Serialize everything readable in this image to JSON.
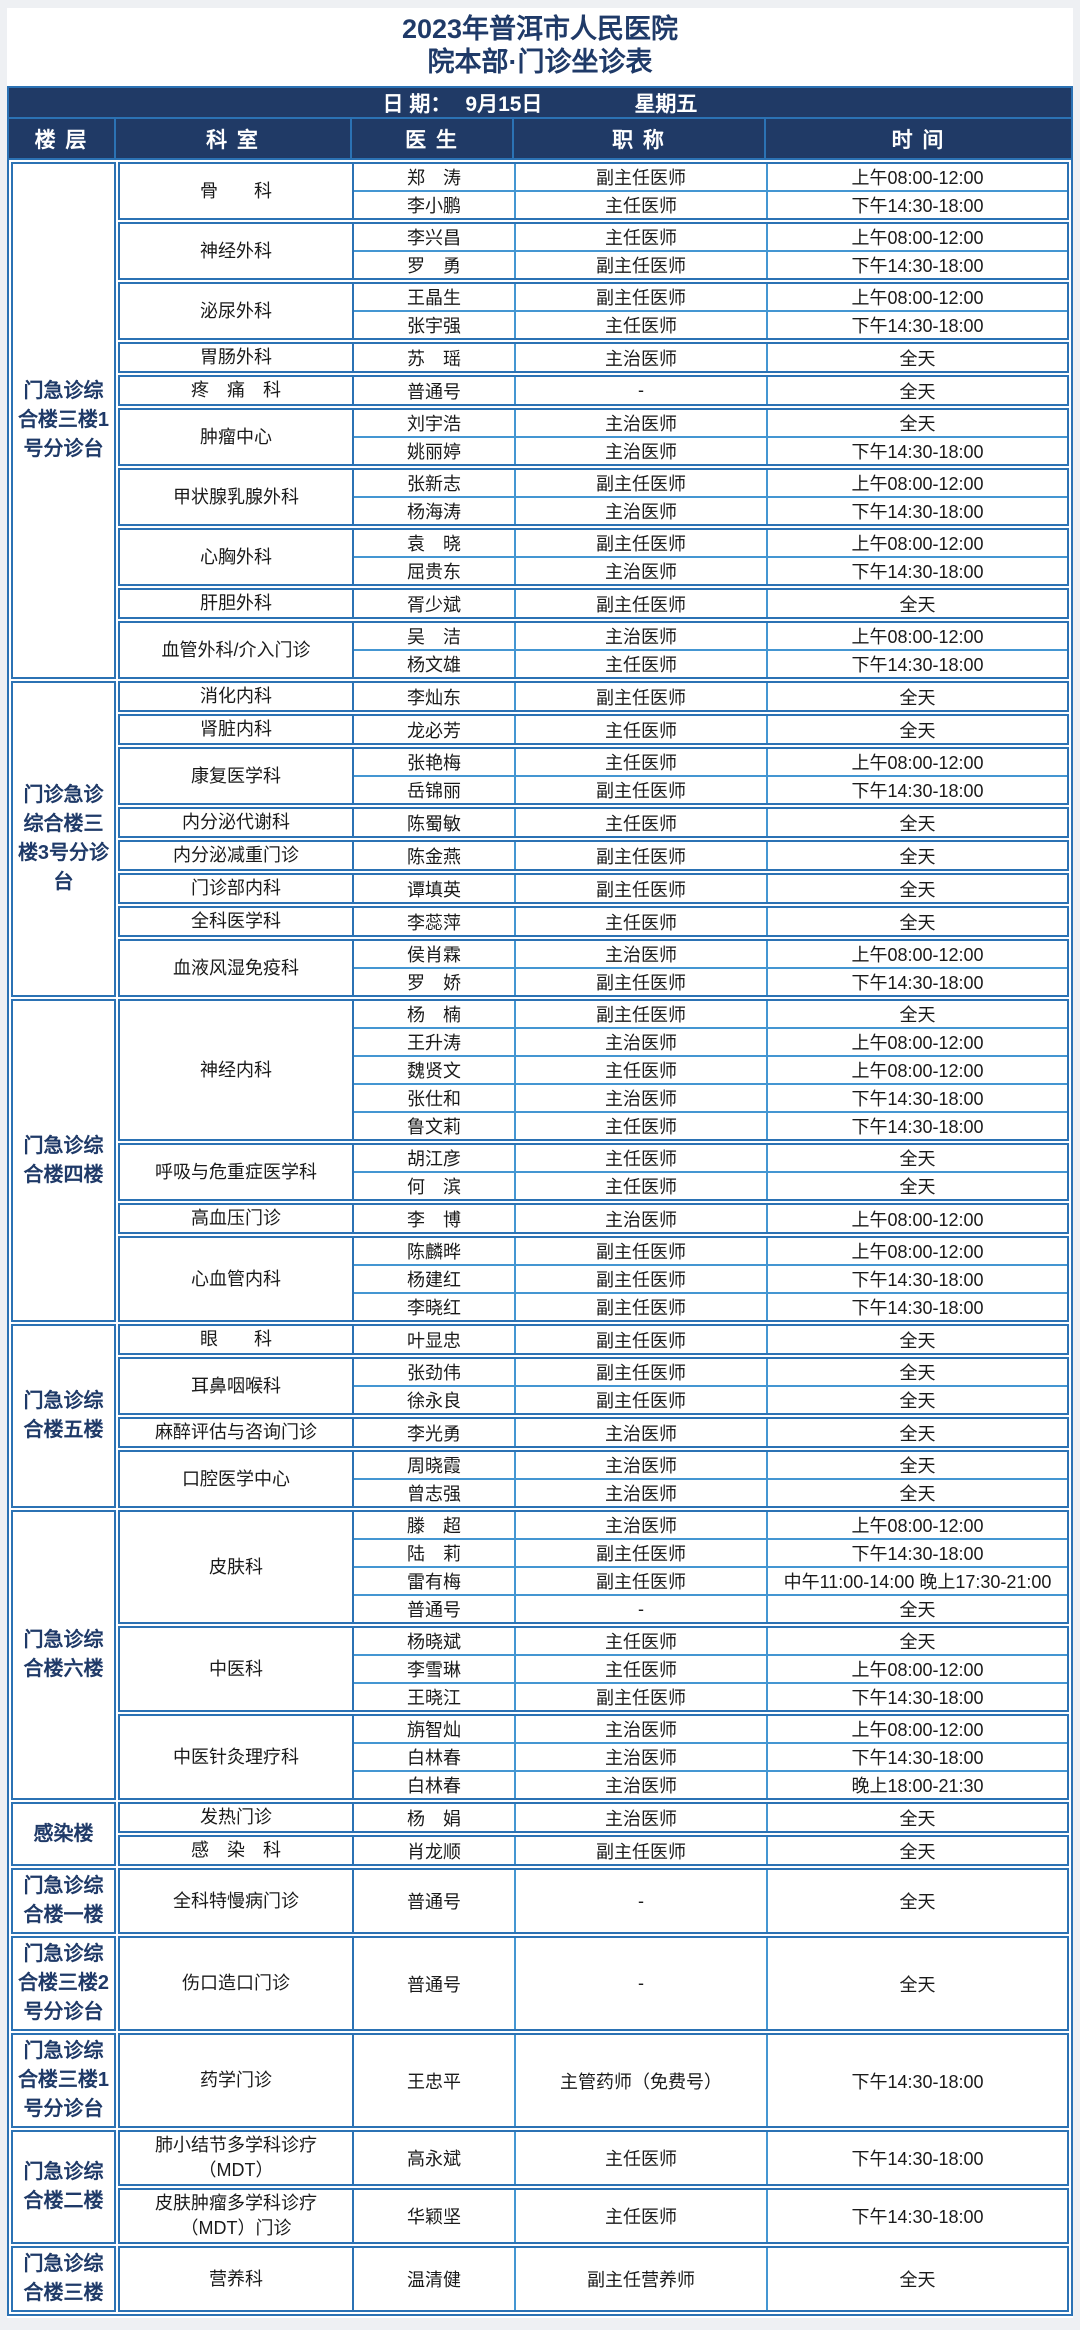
{
  "title": {
    "line1": "2023年普洱市人民医院",
    "line2": "院本部·门诊坐诊表"
  },
  "date_bar": {
    "label": "日 期：",
    "date": "9月15日",
    "weekday": "星期五"
  },
  "columns": {
    "floor": "楼 层",
    "department": "科 室",
    "doctor": "医 生",
    "title": "职 称",
    "time": "时  间"
  },
  "colors": {
    "header_navy": "#203a66",
    "title_navy": "#1f3a68",
    "border_strong": "#2b72b4",
    "border_light": "#4496d2",
    "body_text": "#1a1a1a"
  },
  "groups": [
    {
      "floor": "门急诊综合楼三楼1号分诊台",
      "departments": [
        {
          "name": "骨　　科",
          "doctors": [
            {
              "name": "郑　涛",
              "title": "副主任医师",
              "time": "上午08:00-12:00"
            },
            {
              "name": "李小鹏",
              "title": "主任医师",
              "time": "下午14:30-18:00"
            }
          ]
        },
        {
          "name": "神经外科",
          "doctors": [
            {
              "name": "李兴昌",
              "title": "主任医师",
              "time": "上午08:00-12:00"
            },
            {
              "name": "罗　勇",
              "title": "副主任医师",
              "time": "下午14:30-18:00"
            }
          ]
        },
        {
          "name": "泌尿外科",
          "doctors": [
            {
              "name": "王晶生",
              "title": "副主任医师",
              "time": "上午08:00-12:00"
            },
            {
              "name": "张宇强",
              "title": "主任医师",
              "time": "下午14:30-18:00"
            }
          ]
        },
        {
          "name": "胃肠外科",
          "doctors": [
            {
              "name": "苏　瑶",
              "title": "主治医师",
              "time": "全天"
            }
          ]
        },
        {
          "name": "疼　痛　科",
          "doctors": [
            {
              "name": "普通号",
              "title": "-",
              "time": "全天"
            }
          ]
        },
        {
          "name": "肿瘤中心",
          "doctors": [
            {
              "name": "刘宇浩",
              "title": "主治医师",
              "time": "全天"
            },
            {
              "name": "姚丽婷",
              "title": "主治医师",
              "time": "下午14:30-18:00"
            }
          ]
        },
        {
          "name": "甲状腺乳腺外科",
          "doctors": [
            {
              "name": "张新志",
              "title": "副主任医师",
              "time": "上午08:00-12:00"
            },
            {
              "name": "杨海涛",
              "title": "主治医师",
              "time": "下午14:30-18:00"
            }
          ]
        },
        {
          "name": "心胸外科",
          "doctors": [
            {
              "name": "袁　晓",
              "title": "副主任医师",
              "time": "上午08:00-12:00"
            },
            {
              "name": "屈贵东",
              "title": "主治医师",
              "time": "下午14:30-18:00"
            }
          ]
        },
        {
          "name": "肝胆外科",
          "doctors": [
            {
              "name": "胥少斌",
              "title": "副主任医师",
              "time": "全天"
            }
          ]
        },
        {
          "name": "血管外科/介入门诊",
          "doctors": [
            {
              "name": "吴　洁",
              "title": "主治医师",
              "time": "上午08:00-12:00"
            },
            {
              "name": "杨文雄",
              "title": "主任医师",
              "time": "下午14:30-18:00"
            }
          ]
        }
      ]
    },
    {
      "floor": "门诊急诊综合楼三楼3号分诊台",
      "departments": [
        {
          "name": "消化内科",
          "doctors": [
            {
              "name": "李灿东",
              "title": "副主任医师",
              "time": "全天"
            }
          ]
        },
        {
          "name": "肾脏内科",
          "doctors": [
            {
              "name": "龙必芳",
              "title": "主任医师",
              "time": "全天"
            }
          ]
        },
        {
          "name": "康复医学科",
          "doctors": [
            {
              "name": "张艳梅",
              "title": "主任医师",
              "time": "上午08:00-12:00"
            },
            {
              "name": "岳锦丽",
              "title": "副主任医师",
              "time": "下午14:30-18:00"
            }
          ]
        },
        {
          "name": "内分泌代谢科",
          "doctors": [
            {
              "name": "陈蜀敏",
              "title": "主任医师",
              "time": "全天"
            }
          ]
        },
        {
          "name": "内分泌减重门诊",
          "doctors": [
            {
              "name": "陈金燕",
              "title": "副主任医师",
              "time": "全天"
            }
          ]
        },
        {
          "name": "门诊部内科",
          "doctors": [
            {
              "name": "谭填英",
              "title": "副主任医师",
              "time": "全天"
            }
          ]
        },
        {
          "name": "全科医学科",
          "doctors": [
            {
              "name": "李蕊萍",
              "title": "主任医师",
              "time": "全天"
            }
          ]
        },
        {
          "name": "血液风湿免疫科",
          "doctors": [
            {
              "name": "侯肖霖",
              "title": "主治医师",
              "time": "上午08:00-12:00"
            },
            {
              "name": "罗　娇",
              "title": "副主任医师",
              "time": "下午14:30-18:00"
            }
          ]
        }
      ]
    },
    {
      "floor": "门急诊综合楼四楼",
      "departments": [
        {
          "name": "神经内科",
          "doctors": [
            {
              "name": "杨　楠",
              "title": "副主任医师",
              "time": "全天"
            },
            {
              "name": "王升涛",
              "title": "主治医师",
              "time": "上午08:00-12:00"
            },
            {
              "name": "魏贤文",
              "title": "主任医师",
              "time": "上午08:00-12:00"
            },
            {
              "name": "张仕和",
              "title": "主治医师",
              "time": "下午14:30-18:00"
            },
            {
              "name": "鲁文莉",
              "title": "主任医师",
              "time": "下午14:30-18:00"
            }
          ]
        },
        {
          "name": "呼吸与危重症医学科",
          "doctors": [
            {
              "name": "胡江彦",
              "title": "主任医师",
              "time": "全天"
            },
            {
              "name": "何　滨",
              "title": "主任医师",
              "time": "全天"
            }
          ]
        },
        {
          "name": "高血压门诊",
          "doctors": [
            {
              "name": "李　博",
              "title": "主治医师",
              "time": "上午08:00-12:00"
            }
          ]
        },
        {
          "name": "心血管内科",
          "doctors": [
            {
              "name": "陈麟晔",
              "title": "副主任医师",
              "time": "上午08:00-12:00"
            },
            {
              "name": "杨建红",
              "title": "副主任医师",
              "time": "下午14:30-18:00"
            },
            {
              "name": "李晓红",
              "title": "副主任医师",
              "time": "下午14:30-18:00"
            }
          ]
        }
      ]
    },
    {
      "floor": "门急诊综合楼五楼",
      "departments": [
        {
          "name": "眼　　科",
          "doctors": [
            {
              "name": "叶显忠",
              "title": "副主任医师",
              "time": "全天"
            }
          ]
        },
        {
          "name": "耳鼻咽喉科",
          "doctors": [
            {
              "name": "张劲伟",
              "title": "副主任医师",
              "time": "全天"
            },
            {
              "name": "徐永良",
              "title": "副主任医师",
              "time": "全天"
            }
          ]
        },
        {
          "name": "麻醉评估与咨询门诊",
          "doctors": [
            {
              "name": "李光勇",
              "title": "主治医师",
              "time": "全天"
            }
          ]
        },
        {
          "name": "口腔医学中心",
          "doctors": [
            {
              "name": "周晓霞",
              "title": "主治医师",
              "time": "全天"
            },
            {
              "name": "曾志强",
              "title": "主治医师",
              "time": "全天"
            }
          ]
        }
      ]
    },
    {
      "floor": "门急诊综合楼六楼",
      "departments": [
        {
          "name": "皮肤科",
          "doctors": [
            {
              "name": "滕　超",
              "title": "主治医师",
              "time": "上午08:00-12:00"
            },
            {
              "name": "陆　莉",
              "title": "副主任医师",
              "time": "下午14:30-18:00"
            },
            {
              "name": "雷有梅",
              "title": "副主任医师",
              "time": "中午11:00-14:00 晚上17:30-21:00"
            },
            {
              "name": "普通号",
              "title": "-",
              "time": "全天"
            }
          ]
        },
        {
          "name": "中医科",
          "doctors": [
            {
              "name": "杨晓斌",
              "title": "主任医师",
              "time": "全天"
            },
            {
              "name": "李雪琳",
              "title": "主任医师",
              "time": "上午08:00-12:00"
            },
            {
              "name": "王晓江",
              "title": "副主任医师",
              "time": "下午14:30-18:00"
            }
          ]
        },
        {
          "name": "中医针灸理疗科",
          "doctors": [
            {
              "name": "旃智灿",
              "title": "主治医师",
              "time": "上午08:00-12:00"
            },
            {
              "name": "白林春",
              "title": "主治医师",
              "time": "下午14:30-18:00"
            },
            {
              "name": "白林春",
              "title": "主治医师",
              "time": "晚上18:00-21:30"
            }
          ]
        }
      ]
    },
    {
      "floor": "感染楼",
      "departments": [
        {
          "name": "发热门诊",
          "doctors": [
            {
              "name": "杨　娟",
              "title": "主治医师",
              "time": "全天"
            }
          ]
        },
        {
          "name": "感　染　科",
          "doctors": [
            {
              "name": "肖龙顺",
              "title": "副主任医师",
              "time": "全天"
            }
          ]
        }
      ]
    },
    {
      "floor": "门急诊综合楼一楼",
      "departments": [
        {
          "name": "全科特慢病门诊",
          "doctors": [
            {
              "name": "普通号",
              "title": "-",
              "time": "全天",
              "h": 2
            }
          ]
        }
      ]
    },
    {
      "floor": "门急诊综合楼三楼2号分诊台",
      "departments": [
        {
          "name": "伤口造口门诊",
          "doctors": [
            {
              "name": "普通号",
              "title": "-",
              "time": "全天",
              "h": 3
            }
          ]
        }
      ]
    },
    {
      "floor": "门急诊综合楼三楼1号分诊台",
      "departments": [
        {
          "name": "药学门诊",
          "doctors": [
            {
              "name": "王忠平",
              "title": "主管药师（免费号）",
              "time": "下午14:30-18:00",
              "h": 3
            }
          ]
        }
      ]
    },
    {
      "floor": "门急诊综合楼二楼",
      "departments": [
        {
          "name": "肺小结节多学科诊疗（MDT）",
          "doctors": [
            {
              "name": "高永斌",
              "title": "主任医师",
              "time": "下午14:30-18:00",
              "h": 2
            }
          ]
        },
        {
          "name": "皮肤肿瘤多学科诊疗（MDT）门诊",
          "doctors": [
            {
              "name": "华颖坚",
              "title": "主任医师",
              "time": "下午14:30-18:00",
              "h": 2
            }
          ]
        }
      ]
    },
    {
      "floor": "门急诊综合楼三楼",
      "departments": [
        {
          "name": "营养科",
          "doctors": [
            {
              "name": "温清健",
              "title": "副主任营养师",
              "time": "全天",
              "h": 2
            }
          ]
        }
      ]
    }
  ]
}
